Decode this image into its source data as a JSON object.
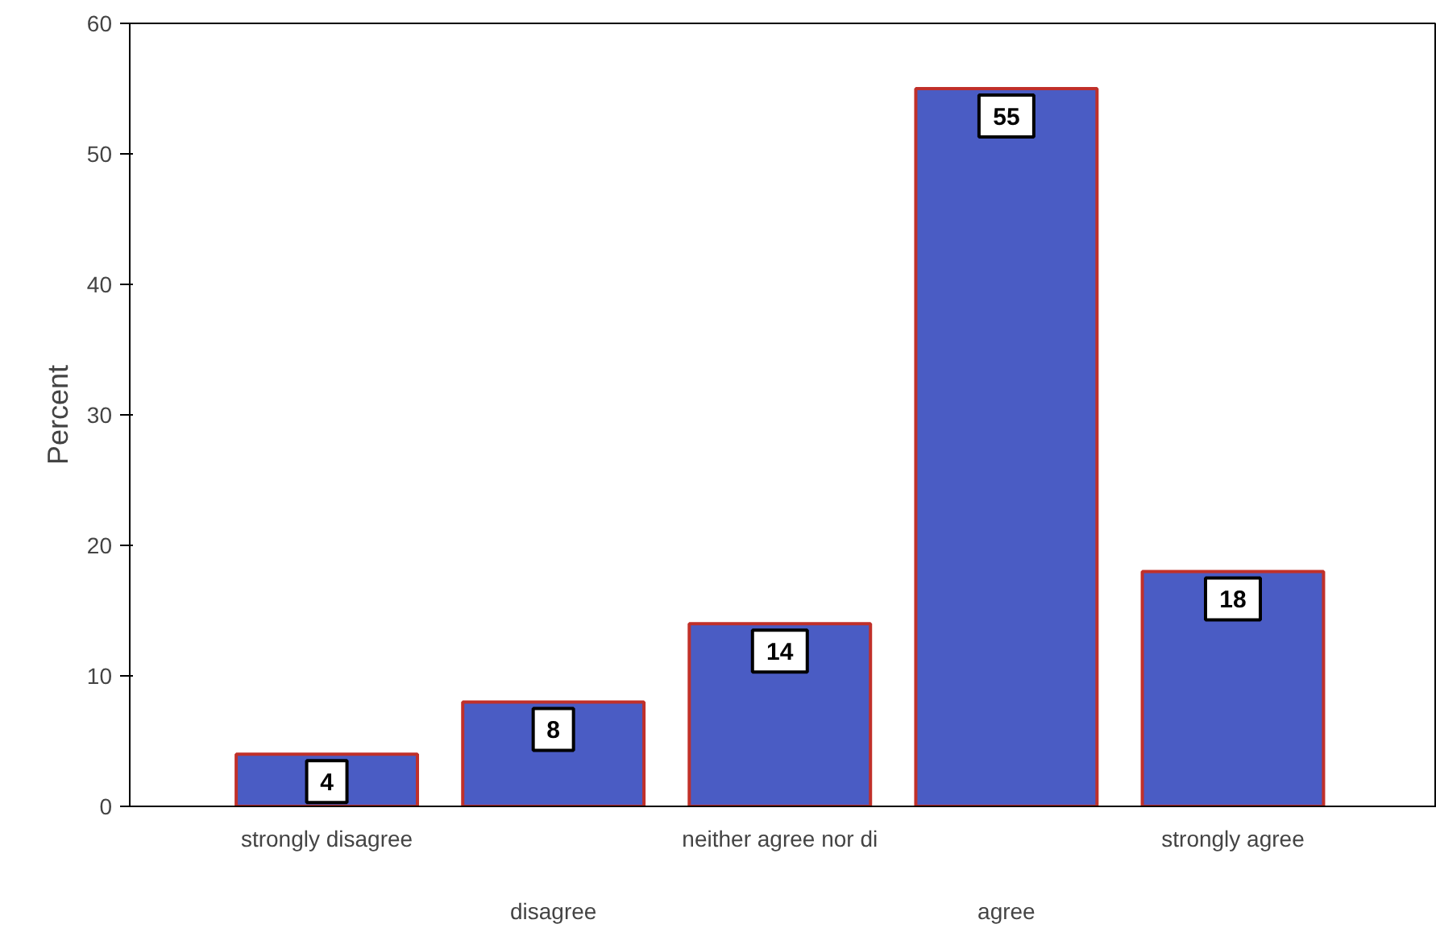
{
  "chart_data": {
    "type": "bar",
    "ylabel": "Percent",
    "categories": [
      "strongly disagree",
      "disagree",
      "neither agree nor di",
      "agree",
      "strongly agree"
    ],
    "values": [
      4,
      8,
      14,
      55,
      18
    ],
    "color": "#4a5cc4",
    "ylim": [
      0,
      60
    ],
    "yticks": [
      0,
      10,
      20,
      30,
      40,
      50,
      60
    ],
    "grid": false,
    "data_labels": true
  }
}
